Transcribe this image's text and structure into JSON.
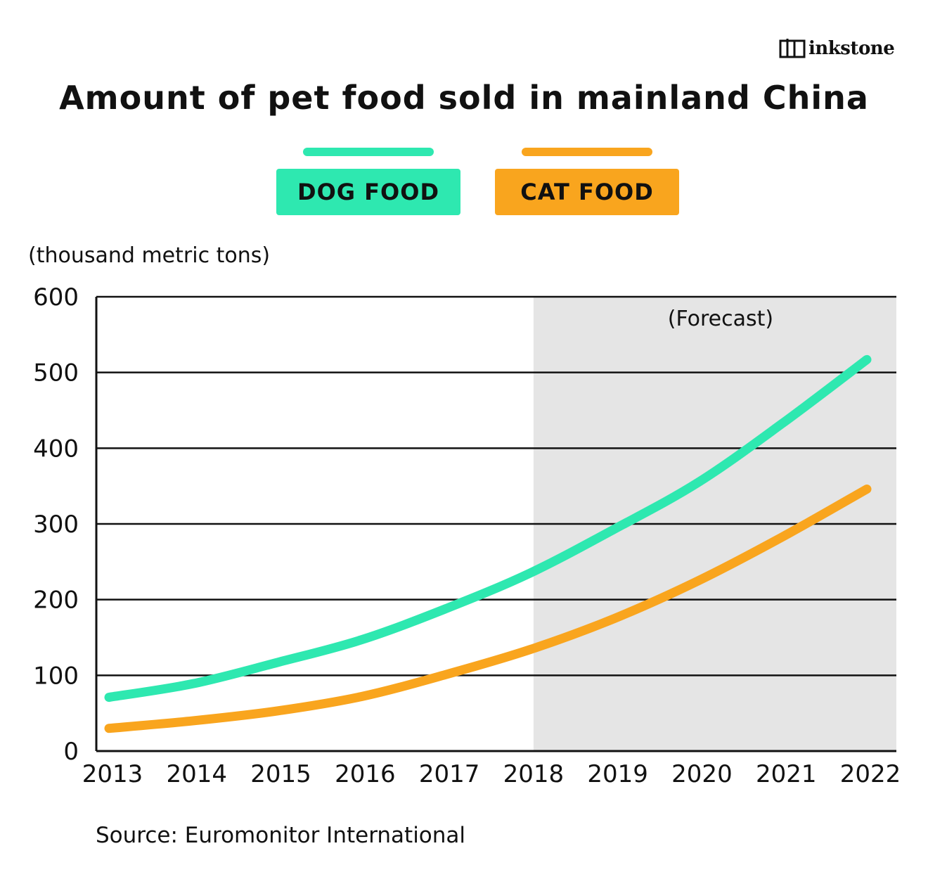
{
  "brand": {
    "name": "inkstone"
  },
  "header": {
    "title": "Amount of pet food sold in mainland China"
  },
  "colors": {
    "dog": "#2ee8b0",
    "cat": "#f9a51e",
    "forecast_bg": "#e5e5e5",
    "grid": "#111111"
  },
  "unit_label": "(thousand metric tons)",
  "forecast_label": "(Forecast)",
  "source": "Source: Euromonitor International",
  "chart_data": {
    "type": "line",
    "title": "Amount of pet food sold in mainland China",
    "ylabel": "(thousand metric tons)",
    "ylim": [
      0,
      600
    ],
    "yticks": [
      0,
      100,
      200,
      300,
      400,
      500,
      600
    ],
    "x": [
      "2013",
      "2014",
      "2015",
      "2016",
      "2017",
      "2018",
      "2019",
      "2020",
      "2021",
      "2022"
    ],
    "grid": true,
    "legend_position": "top-center",
    "forecast_region": {
      "from": "2018",
      "to": "2022",
      "label": "(Forecast)"
    },
    "series": [
      {
        "name": "DOG FOOD",
        "color": "#2ee8b0",
        "values": [
          71,
          89,
          117,
          147,
          188,
          235,
          293,
          355,
          433,
          517
        ]
      },
      {
        "name": "CAT FOOD",
        "color": "#f9a51e",
        "values": [
          30,
          40,
          53,
          72,
          101,
          134,
          175,
          225,
          283,
          346
        ]
      }
    ]
  }
}
